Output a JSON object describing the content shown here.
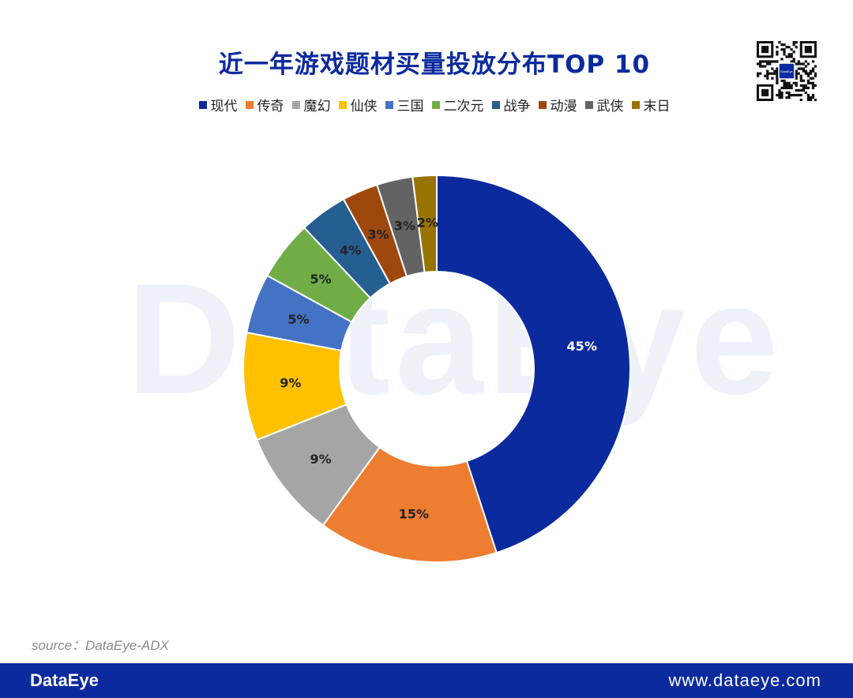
{
  "watermark": "DataEye",
  "source": "source：DataEye-ADX",
  "footer": {
    "brand": "DataEye",
    "url": "www.dataeye.com"
  },
  "qr_logo": "DataEye",
  "colors": {
    "title": "#0a2a9e",
    "footer_bg": "#0a2a9e"
  },
  "chart_data": {
    "type": "pie",
    "title": "近一年游戏题材买量投放分布TOP 10",
    "donut": true,
    "legend_position": "top",
    "categories": [
      "现代",
      "传奇",
      "魔幻",
      "仙侠",
      "三国",
      "二次元",
      "战争",
      "动漫",
      "武侠",
      "末日"
    ],
    "values": [
      45,
      15,
      9,
      9,
      5,
      5,
      4,
      3,
      3,
      2
    ],
    "labels": [
      "45%",
      "15%",
      "9%",
      "9%",
      "5%",
      "5%",
      "4%",
      "3%",
      "3%",
      "2%"
    ],
    "colors": [
      "#0a2a9e",
      "#ed7d31",
      "#a5a5a5",
      "#ffc000",
      "#4472c4",
      "#70ad47",
      "#255e91",
      "#9e480e",
      "#636363",
      "#997300"
    ]
  }
}
